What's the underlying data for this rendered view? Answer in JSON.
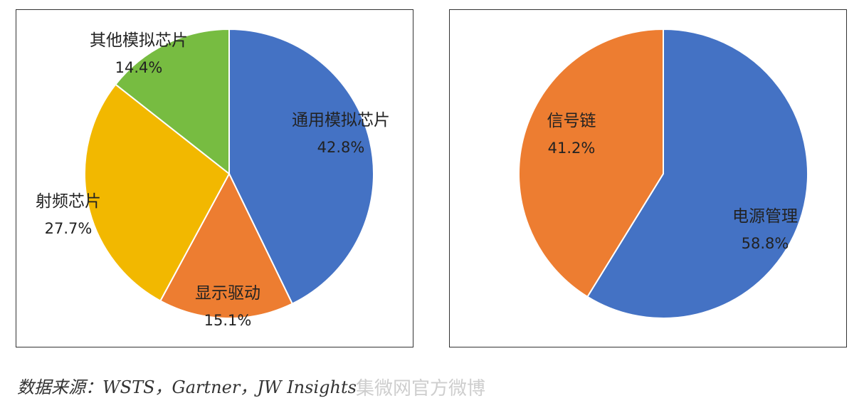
{
  "chart_data": [
    {
      "type": "pie",
      "slices": [
        {
          "label": "通用模拟芯片",
          "value": 42.8,
          "value_text": "42.8%",
          "color": "#4472C4"
        },
        {
          "label": "显示驱动",
          "value": 15.1,
          "value_text": "15.1%",
          "color": "#ED7D31"
        },
        {
          "label": "射频芯片",
          "value": 27.7,
          "value_text": "27.7%",
          "color": "#F2B800"
        },
        {
          "label": "其他模拟芯片",
          "value": 14.4,
          "value_text": "14.4%",
          "color": "#77BC41"
        }
      ],
      "start": "12 o'clock",
      "direction": "clockwise"
    },
    {
      "type": "pie",
      "slices": [
        {
          "label": "电源管理",
          "value": 58.8,
          "value_text": "58.8%",
          "color": "#4472C4"
        },
        {
          "label": "信号链",
          "value": 41.2,
          "value_text": "41.2%",
          "color": "#ED7D31"
        }
      ],
      "start": "12 o'clock",
      "direction": "clockwise"
    }
  ],
  "source_text": "数据来源：WSTS，Gartner，JW Insights",
  "watermark_text": "集微网官方微博"
}
